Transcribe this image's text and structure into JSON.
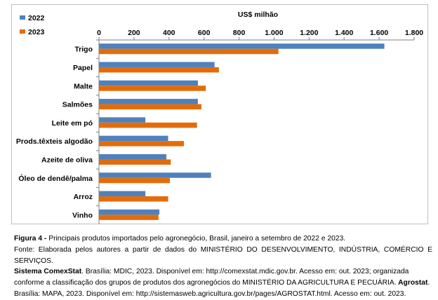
{
  "chart_data": {
    "type": "bar",
    "orientation": "horizontal",
    "title": "US$ milhão",
    "categories": [
      "Trigo",
      "Papel",
      "Malte",
      "Salmões",
      "Leite em pó",
      "Prods.têxteis algodão",
      "Azeite de oliva",
      "Óleo de dendê/palma",
      "Arroz",
      "Vinho"
    ],
    "series": [
      {
        "name": "2022",
        "color": "#4f81bd",
        "values": [
          1630,
          660,
          565,
          565,
          265,
          395,
          385,
          640,
          265,
          345
        ]
      },
      {
        "name": "2023",
        "color": "#e36c0a",
        "values": [
          1025,
          685,
          610,
          585,
          560,
          485,
          410,
          405,
          395,
          340
        ]
      }
    ],
    "xlim": [
      0,
      1800
    ],
    "xticks": [
      0,
      200,
      400,
      600,
      800,
      1000,
      1200,
      1400,
      1600,
      1800
    ],
    "xtick_labels": [
      "0",
      "200",
      "400",
      "600",
      "800",
      "1.000",
      "1.200",
      "1.400",
      "1.600",
      "1.800"
    ],
    "axis_position": "top",
    "grid": false,
    "legend_position": "top-left"
  },
  "caption": {
    "figure_label": "Figura 4 -",
    "figure_text": " Principais produtos importados pelo agronegócio, Brasil, janeiro a setembro de 2022 e 2023.",
    "source_1": "Fonte: Elaborada pelos autores a partir de dados do MINISTÉRIO DO DESENVOLVIMENTO, INDÚSTRIA, COMÉRCIO E SERVIÇOS.",
    "source_2_bold": "Sistema ComexStat",
    "source_2": ". Brasília: MDIC, 2023. Disponível em: http://comexstat.mdic.gov.br. Acesso em: out. 2023; organizada",
    "source_3": "conforme a classificação dos grupos de produtos dos agronegócios do MINISTÉRIO DA AGRICULTURA E PECUÁRIA.",
    "source_3_bold": " Agrostat",
    "source_3_end": ".",
    "source_4": "Brasília: MAPA, 2023. Disponível em: http://sistemasweb.agricultura.gov.br/pages/AGROSTAT.html. Acesso em: out. 2023."
  }
}
